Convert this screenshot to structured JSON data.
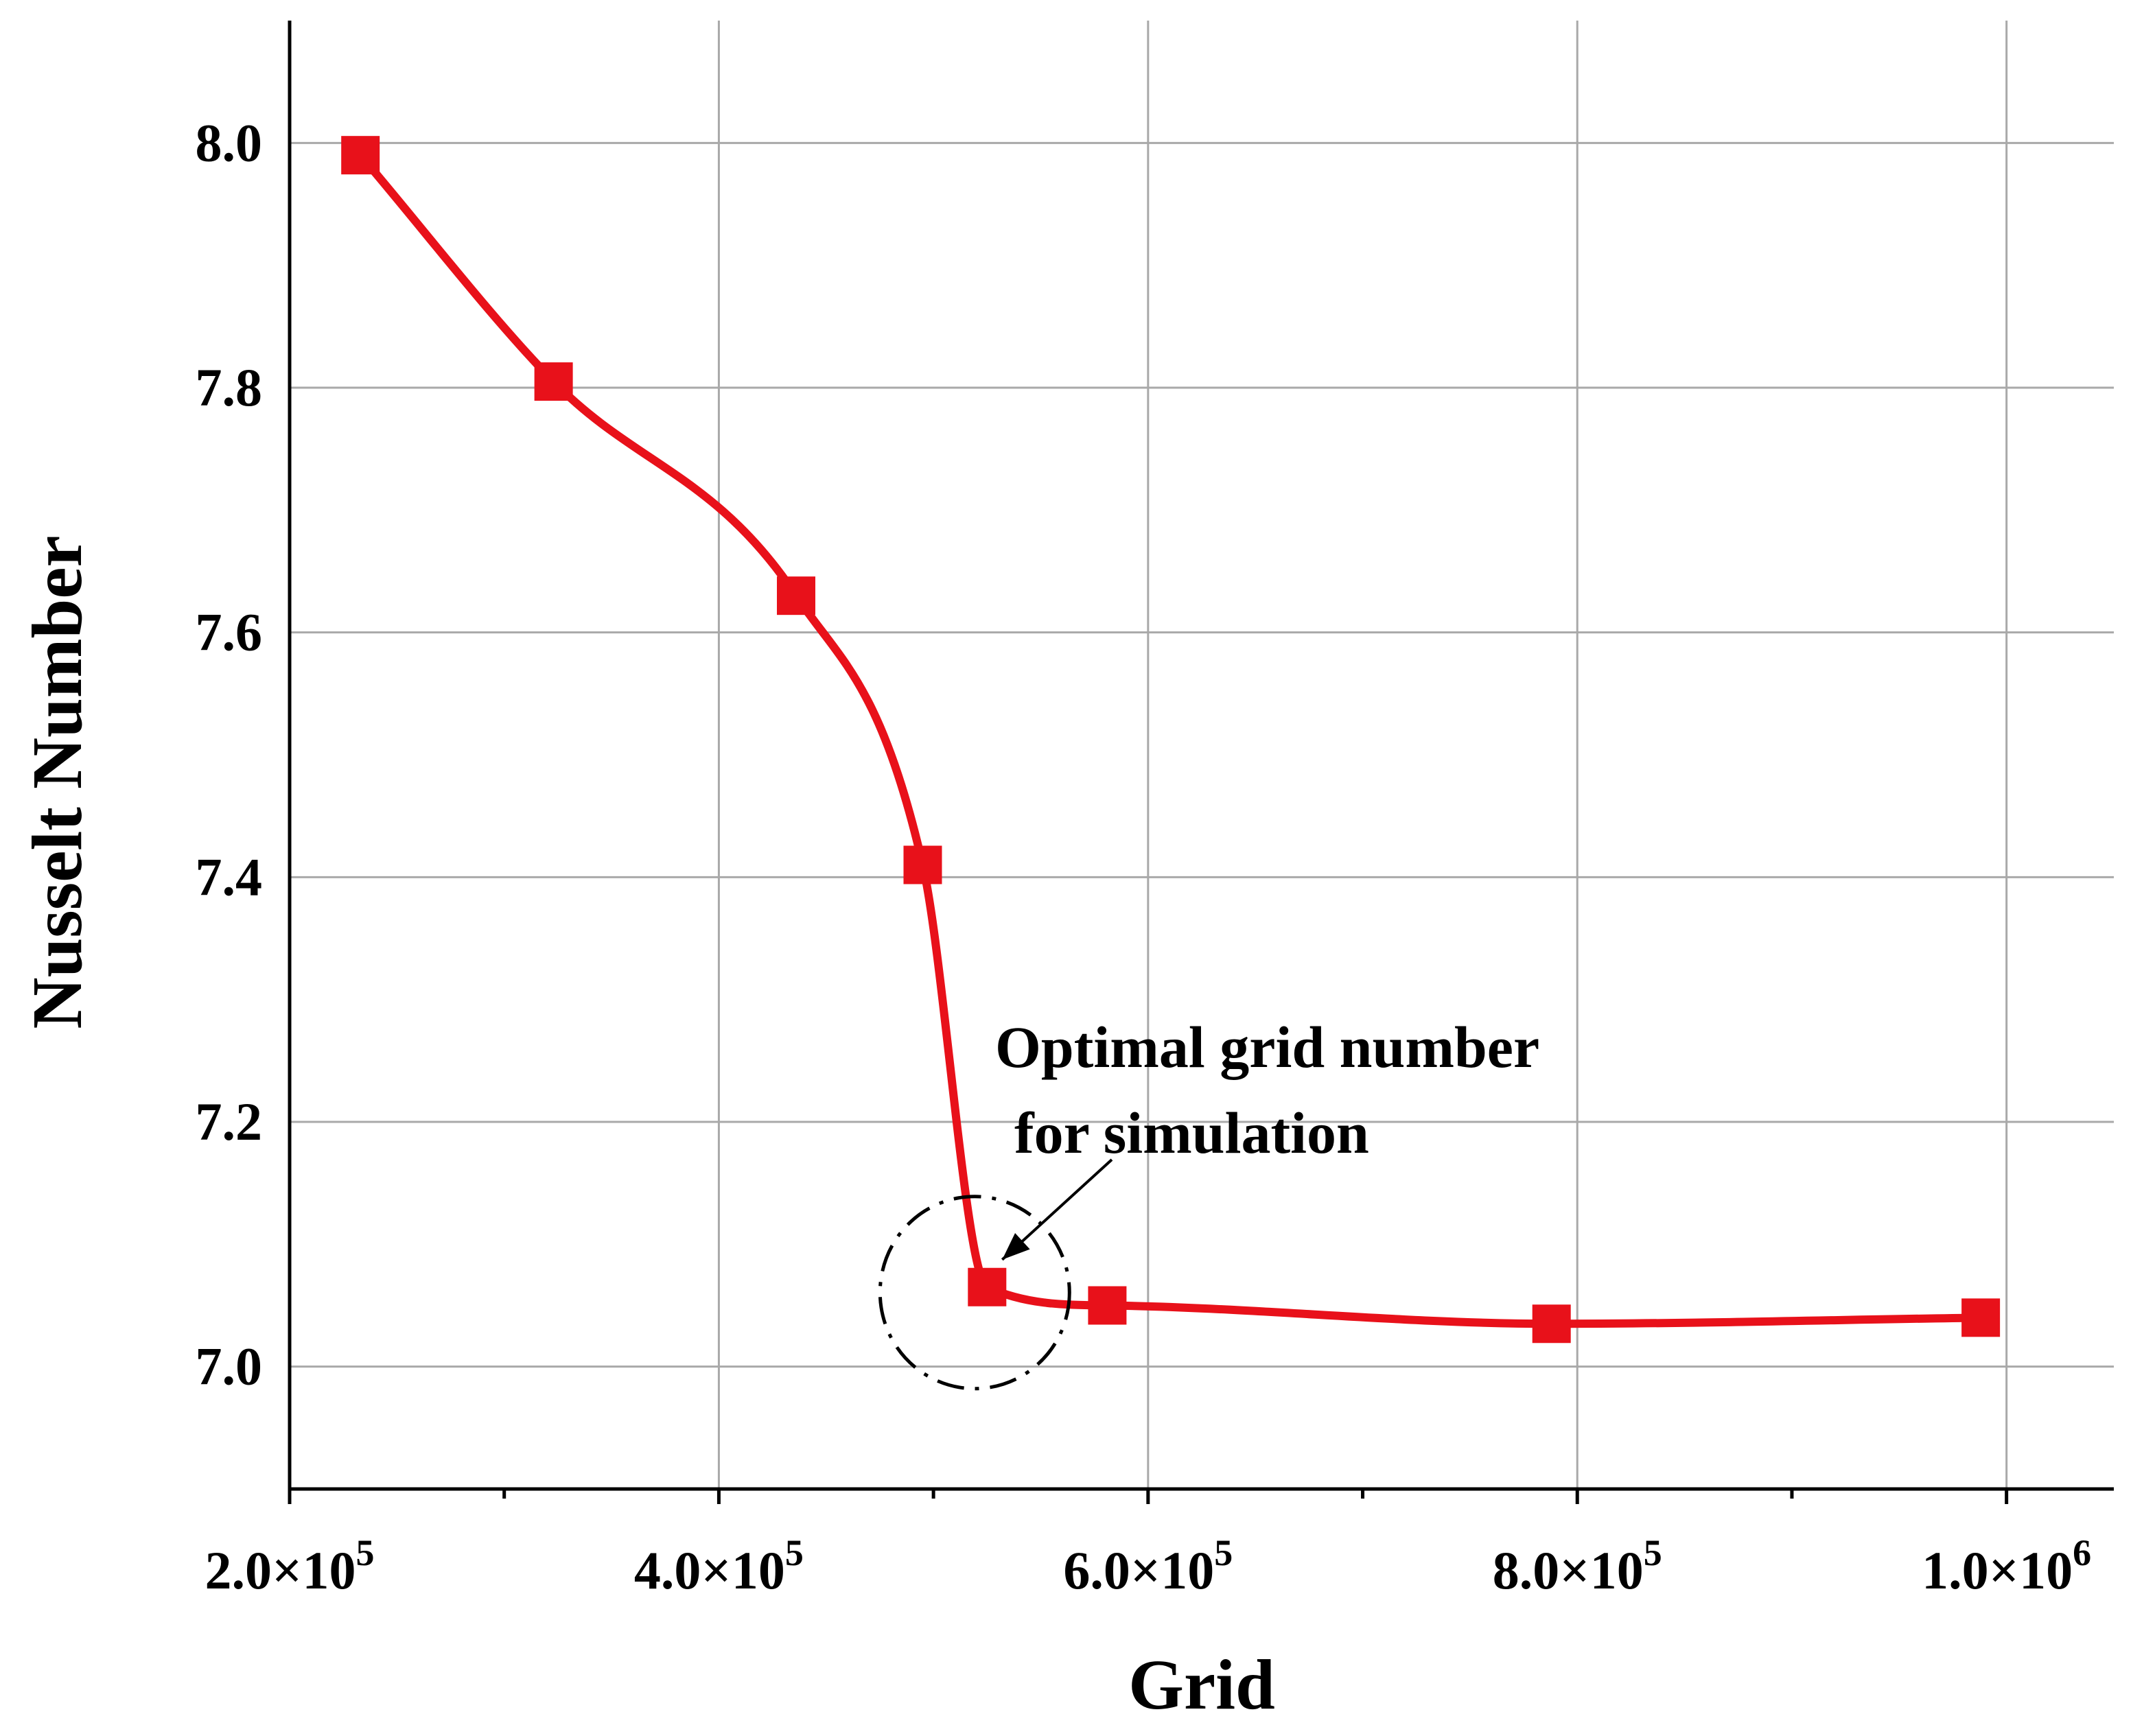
{
  "chart_data": {
    "type": "line",
    "title": "",
    "xlabel": "Grid",
    "ylabel": "Nusselt Number",
    "xlim": [
      200000,
      1050000
    ],
    "ylim": [
      6.9,
      8.1
    ],
    "x_ticks": [
      {
        "value": 200000,
        "mantissa": "2.0",
        "exponent": "5"
      },
      {
        "value": 400000,
        "mantissa": "4.0",
        "exponent": "5"
      },
      {
        "value": 600000,
        "mantissa": "6.0",
        "exponent": "5"
      },
      {
        "value": 800000,
        "mantissa": "8.0",
        "exponent": "5"
      },
      {
        "value": 1000000,
        "mantissa": "1.0",
        "exponent": "6"
      }
    ],
    "x_minor_ticks": [
      300000,
      500000,
      700000,
      900000
    ],
    "y_ticks": [
      {
        "value": 7.0,
        "label": "7.0"
      },
      {
        "value": 7.2,
        "label": "7.2"
      },
      {
        "value": 7.4,
        "label": "7.4"
      },
      {
        "value": 7.6,
        "label": "7.6"
      },
      {
        "value": 7.8,
        "label": "7.8"
      },
      {
        "value": 8.0,
        "label": "8.0"
      }
    ],
    "grid": true,
    "series": [
      {
        "name": "Nusselt Number",
        "color": "#e8111a",
        "marker": "square",
        "x": [
          233000,
          323000,
          436000,
          495000,
          525000,
          581000,
          788000,
          988000
        ],
        "y": [
          7.99,
          7.805,
          7.63,
          7.41,
          7.065,
          7.05,
          7.035,
          7.04
        ]
      }
    ],
    "annotation": {
      "line1": "Optimal grid number",
      "line2": "for simulation",
      "target_x": 525000,
      "target_y": 7.065
    }
  }
}
